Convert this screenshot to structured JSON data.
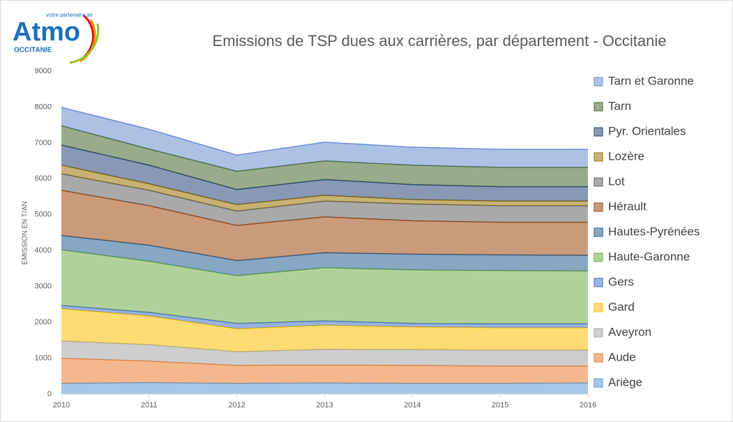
{
  "logo": {
    "name": "Atmo",
    "tagline": "votre partenaire air",
    "region": "OCCITANIE"
  },
  "chart_data": {
    "type": "stacked-area",
    "title": "Emissions de TSP dues aux carrières, par département  - Occitanie",
    "y_label": "EMISSION EN T/AN",
    "x": [
      2010,
      2011,
      2012,
      2013,
      2014,
      2015,
      2016
    ],
    "xlim": [
      2010,
      2016
    ],
    "xticks": [
      2010,
      2011,
      2012,
      2013,
      2014,
      2015,
      2016
    ],
    "ylim": [
      0,
      9000
    ],
    "yticks": [
      0,
      1000,
      2000,
      3000,
      4000,
      5000,
      6000,
      7000,
      8000,
      9000
    ],
    "legend": "right",
    "series": [
      {
        "name": "Ariège",
        "color": "#5b9bd5",
        "values": [
          300,
          320,
          300,
          310,
          300,
          300,
          310
        ]
      },
      {
        "name": "Aude",
        "color": "#ed7d31",
        "values": [
          700,
          600,
          500,
          500,
          500,
          480,
          470
        ]
      },
      {
        "name": "Aveyron",
        "color": "#a5a5a5",
        "values": [
          480,
          460,
          380,
          440,
          440,
          450,
          450
        ]
      },
      {
        "name": "Gard",
        "color": "#ffc000",
        "values": [
          900,
          800,
          640,
          670,
          630,
          620,
          620
        ]
      },
      {
        "name": "Gers",
        "color": "#4472c4",
        "values": [
          90,
          100,
          150,
          120,
          100,
          110,
          110
        ]
      },
      {
        "name": "Haute-Garonne",
        "color": "#70ad47",
        "values": [
          1550,
          1420,
          1330,
          1480,
          1490,
          1480,
          1470
        ]
      },
      {
        "name": "Hautes-Pyrénées",
        "color": "#255e91",
        "values": [
          400,
          450,
          420,
          420,
          440,
          440,
          440
        ]
      },
      {
        "name": "Hérault",
        "color": "#9e480e",
        "values": [
          1260,
          1100,
          980,
          1000,
          930,
          910,
          920
        ]
      },
      {
        "name": "Lot",
        "color": "#636363",
        "values": [
          460,
          430,
          400,
          440,
          470,
          460,
          460
        ]
      },
      {
        "name": "Lozère",
        "color": "#997300",
        "values": [
          240,
          180,
          180,
          160,
          120,
          130,
          130
        ]
      },
      {
        "name": "Pyr. Orientales",
        "color": "#264478",
        "values": [
          560,
          520,
          420,
          440,
          420,
          400,
          400
        ]
      },
      {
        "name": "Tarn",
        "color": "#43682b",
        "values": [
          540,
          450,
          510,
          520,
          540,
          540,
          540
        ]
      },
      {
        "name": "Tarn et Garonne",
        "color": "#698ed0",
        "values": [
          510,
          550,
          450,
          520,
          500,
          500,
          500
        ]
      }
    ]
  }
}
